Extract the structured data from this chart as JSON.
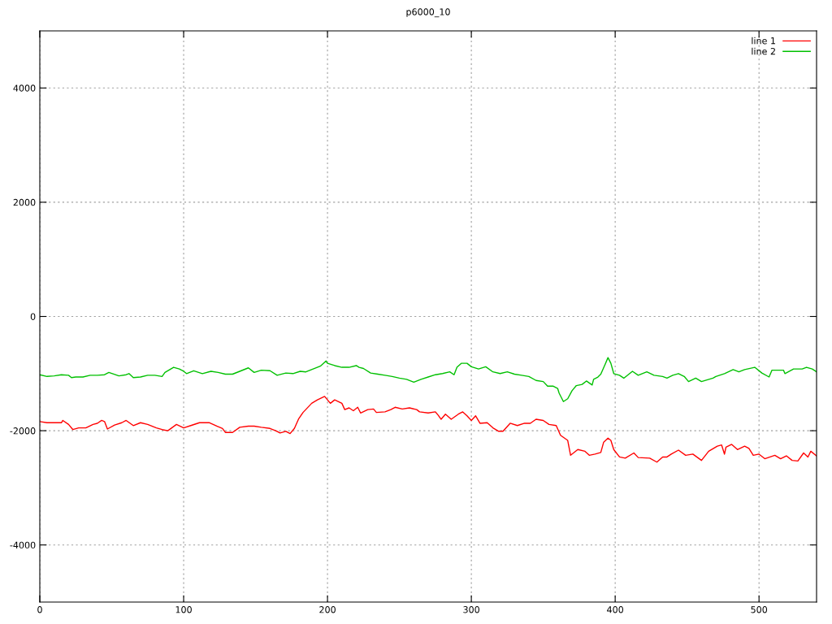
{
  "chart_data": {
    "type": "line",
    "title": "p6000_10",
    "xlim": [
      0,
      540
    ],
    "ylim": [
      -5000,
      5000
    ],
    "xticks": [
      0,
      100,
      200,
      300,
      400,
      500
    ],
    "yticks": [
      -4000,
      -2000,
      0,
      2000,
      4000
    ],
    "grid": true,
    "legend": "top right",
    "line_style": "solid",
    "marker": "none",
    "series": [
      {
        "name": "line 1",
        "color": "#ff0000",
        "x": [
          0,
          5,
          10,
          15,
          16,
          20,
          23,
          27,
          32,
          37,
          40,
          43,
          45,
          47,
          52,
          57,
          60,
          65,
          70,
          75,
          81,
          85,
          89,
          95,
          100,
          105,
          111,
          118,
          123,
          127,
          129,
          134,
          139,
          145,
          149,
          154,
          160,
          164,
          167,
          171,
          174,
          177,
          180,
          183,
          189,
          193,
          198,
          200,
          202,
          205,
          210,
          212,
          215,
          218,
          221,
          223,
          228,
          232,
          234,
          240,
          244,
          247,
          252,
          257,
          262,
          264,
          270,
          275,
          277,
          279,
          282,
          286,
          291,
          294,
          297,
          300,
          303,
          306,
          311,
          315,
          319,
          322,
          327,
          332,
          337,
          341,
          345,
          350,
          354,
          359,
          362,
          367,
          369,
          371,
          374,
          379,
          382,
          386,
          390,
          392,
          395,
          397,
          399,
          403,
          407,
          413,
          416,
          424,
          429,
          433,
          436,
          439,
          444,
          449,
          454,
          460,
          465,
          471,
          474,
          476,
          477,
          481,
          485,
          490,
          493,
          496,
          500,
          504,
          511,
          515,
          519,
          523,
          527,
          531,
          534,
          536,
          540
        ],
        "values": [
          -1840,
          -1860,
          -1860,
          -1860,
          -1820,
          -1890,
          -1980,
          -1950,
          -1950,
          -1890,
          -1870,
          -1820,
          -1840,
          -1970,
          -1900,
          -1860,
          -1820,
          -1910,
          -1860,
          -1890,
          -1950,
          -1980,
          -2000,
          -1890,
          -1950,
          -1910,
          -1860,
          -1860,
          -1920,
          -1960,
          -2030,
          -2030,
          -1940,
          -1920,
          -1920,
          -1940,
          -1960,
          -2000,
          -2040,
          -2010,
          -2050,
          -1960,
          -1790,
          -1680,
          -1520,
          -1460,
          -1400,
          -1460,
          -1520,
          -1460,
          -1520,
          -1630,
          -1600,
          -1650,
          -1590,
          -1690,
          -1630,
          -1620,
          -1680,
          -1670,
          -1630,
          -1590,
          -1620,
          -1600,
          -1630,
          -1670,
          -1690,
          -1670,
          -1730,
          -1800,
          -1710,
          -1800,
          -1710,
          -1670,
          -1740,
          -1820,
          -1740,
          -1870,
          -1860,
          -1950,
          -2010,
          -2010,
          -1870,
          -1910,
          -1870,
          -1870,
          -1800,
          -1820,
          -1890,
          -1910,
          -2080,
          -2170,
          -2430,
          -2390,
          -2330,
          -2360,
          -2430,
          -2410,
          -2380,
          -2200,
          -2130,
          -2170,
          -2330,
          -2460,
          -2480,
          -2390,
          -2470,
          -2480,
          -2550,
          -2460,
          -2460,
          -2410,
          -2340,
          -2430,
          -2410,
          -2520,
          -2360,
          -2270,
          -2250,
          -2410,
          -2290,
          -2240,
          -2330,
          -2270,
          -2310,
          -2430,
          -2410,
          -2490,
          -2430,
          -2490,
          -2440,
          -2520,
          -2530,
          -2390,
          -2460,
          -2360,
          -2440
        ]
      },
      {
        "name": "line 2",
        "color": "#00c000",
        "x": [
          0,
          5,
          10,
          15,
          20,
          22,
          25,
          30,
          35,
          40,
          45,
          48,
          55,
          60,
          62,
          65,
          70,
          75,
          80,
          85,
          87,
          93,
          97,
          100,
          102,
          107,
          113,
          119,
          124,
          129,
          134,
          139,
          145,
          149,
          154,
          160,
          165,
          171,
          176,
          181,
          185,
          190,
          195,
          199,
          200,
          205,
          210,
          215,
          220,
          222,
          225,
          230,
          235,
          240,
          245,
          250,
          255,
          260,
          265,
          270,
          275,
          280,
          285,
          288,
          290,
          293,
          297,
          300,
          305,
          310,
          315,
          320,
          325,
          330,
          335,
          340,
          345,
          350,
          353,
          357,
          360,
          361,
          364,
          367,
          370,
          373,
          377,
          380,
          384,
          385,
          388,
          390,
          393,
          395,
          397,
          399,
          403,
          406,
          412,
          416,
          422,
          427,
          433,
          436,
          440,
          444,
          448,
          451,
          456,
          460,
          468,
          470,
          476,
          482,
          486,
          490,
          497,
          502,
          507,
          509,
          517,
          518,
          524,
          530,
          533,
          537,
          540
        ],
        "values": [
          -1020,
          -1050,
          -1040,
          -1020,
          -1030,
          -1070,
          -1060,
          -1060,
          -1030,
          -1030,
          -1020,
          -980,
          -1040,
          -1020,
          -1000,
          -1070,
          -1060,
          -1030,
          -1030,
          -1050,
          -980,
          -890,
          -920,
          -960,
          -1000,
          -950,
          -1000,
          -960,
          -980,
          -1010,
          -1010,
          -960,
          -900,
          -980,
          -940,
          -950,
          -1030,
          -990,
          -1000,
          -960,
          -970,
          -920,
          -870,
          -780,
          -820,
          -860,
          -890,
          -890,
          -860,
          -890,
          -910,
          -990,
          -1010,
          -1030,
          -1050,
          -1080,
          -1100,
          -1150,
          -1100,
          -1060,
          -1020,
          -1000,
          -970,
          -1020,
          -890,
          -820,
          -820,
          -880,
          -920,
          -880,
          -970,
          -1000,
          -970,
          -1010,
          -1030,
          -1050,
          -1120,
          -1140,
          -1220,
          -1220,
          -1260,
          -1340,
          -1490,
          -1440,
          -1300,
          -1210,
          -1190,
          -1130,
          -1200,
          -1100,
          -1060,
          -1010,
          -840,
          -720,
          -820,
          -1000,
          -1030,
          -1080,
          -960,
          -1030,
          -970,
          -1030,
          -1050,
          -1080,
          -1030,
          -1000,
          -1050,
          -1140,
          -1080,
          -1140,
          -1080,
          -1050,
          -1000,
          -930,
          -970,
          -930,
          -890,
          -990,
          -1060,
          -940,
          -940,
          -1000,
          -920,
          -920,
          -890,
          -920,
          -970
        ]
      }
    ]
  }
}
